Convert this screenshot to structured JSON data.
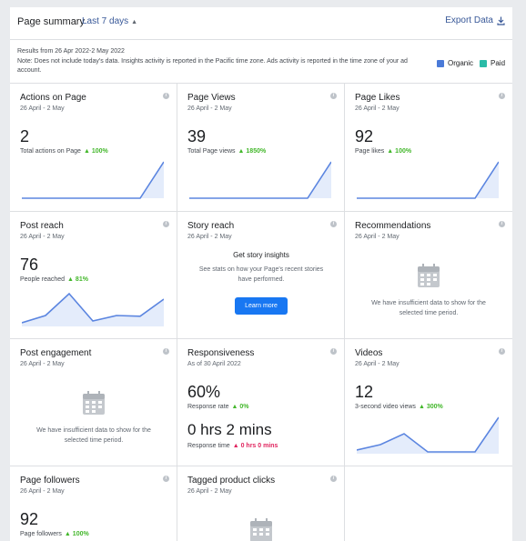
{
  "header": {
    "title": "Page summary",
    "range": "Last 7 days",
    "export_label": "Export Data"
  },
  "note": {
    "line1": "Results from 26 Apr 2022-2 May 2022",
    "line2": "Note: Does not include today's data. Insights activity is reported in the Pacific time zone. Ads activity is reported in the time zone of your ad account."
  },
  "legend": {
    "organic": {
      "label": "Organic",
      "color": "#4a7ad8"
    },
    "paid": {
      "label": "Paid",
      "color": "#2abba7"
    }
  },
  "colors": {
    "accent": "#385898",
    "positive": "#42b72a",
    "negative": "#e0245e",
    "spark": "#5b85e0",
    "spark_fill": "#e4ecfb"
  },
  "cards": {
    "actions": {
      "title": "Actions on Page",
      "date": "26 April - 2 May",
      "value": "2",
      "sub_label": "Total actions on Page",
      "change": "100%",
      "spark": [
        0,
        0,
        0,
        0,
        0,
        0,
        1
      ]
    },
    "views": {
      "title": "Page Views",
      "date": "26 April - 2 May",
      "value": "39",
      "sub_label": "Total Page views",
      "change": "1850%",
      "spark": [
        0,
        0,
        0,
        0,
        0,
        0,
        1
      ]
    },
    "likes": {
      "title": "Page Likes",
      "date": "26 April - 2 May",
      "value": "92",
      "sub_label": "Page likes",
      "change": "100%",
      "spark": [
        0,
        0,
        0,
        0,
        0,
        0,
        1
      ]
    },
    "reach": {
      "title": "Post reach",
      "date": "26 April - 2 May",
      "value": "76",
      "sub_label": "People reached",
      "change": "81%",
      "spark": [
        0.1,
        0.3,
        0.9,
        0.15,
        0.3,
        0.28,
        0.75
      ]
    },
    "story": {
      "title": "Story reach",
      "date": "26 April - 2 May",
      "heading": "Get story insights",
      "body": "See stats on how your Page's recent stories have performed.",
      "button": "Learn more"
    },
    "recs": {
      "title": "Recommendations",
      "date": "26 April - 2 May",
      "message": "We have insufficient data to show for the selected time period."
    },
    "engagement": {
      "title": "Post engagement",
      "date": "26 April - 2 May",
      "message": "We have insufficient data to show for the selected time period."
    },
    "responsiveness": {
      "title": "Responsiveness",
      "date": "As of 30 April 2022",
      "value": "60%",
      "sub_label": "Response rate",
      "change": "0%",
      "value2": "0 hrs 2 mins",
      "sub_label2": "Response time",
      "change2": "0 hrs 0 mins"
    },
    "videos": {
      "title": "Videos",
      "date": "26 April - 2 May",
      "value": "12",
      "sub_label": "3-second video views",
      "change": "300%",
      "spark": [
        0.1,
        0.25,
        0.55,
        0.05,
        0.05,
        0.05,
        1
      ]
    },
    "followers": {
      "title": "Page followers",
      "date": "26 April - 2 May",
      "value": "92",
      "sub_label": "Page followers",
      "change": "100%"
    },
    "tagged": {
      "title": "Tagged product clicks",
      "date": "26 April - 2 May"
    }
  }
}
